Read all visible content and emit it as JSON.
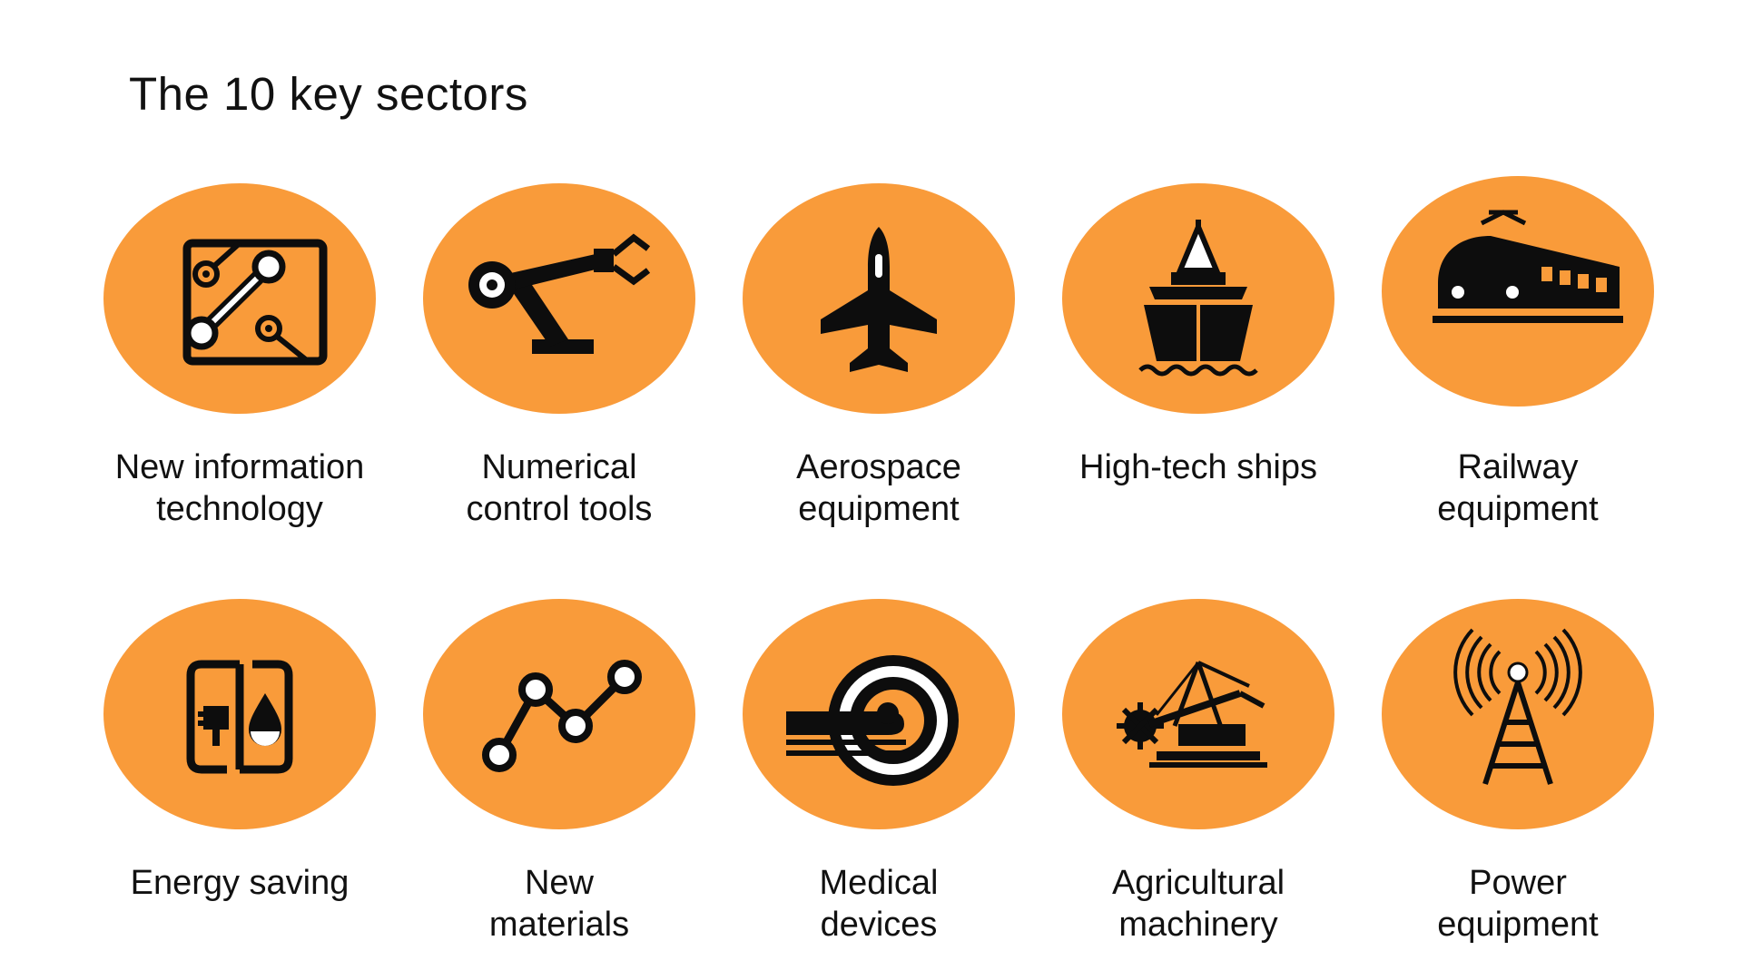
{
  "title": "The 10 key sectors",
  "colors": {
    "disc": "#F99B3A",
    "icon": "#0D0D0D",
    "background": "#FFFFFF"
  },
  "sectors": [
    {
      "icon": "circuit-board-icon",
      "label_lines": [
        "New information",
        "technology"
      ]
    },
    {
      "icon": "robot-arm-icon",
      "label_lines": [
        "Numerical",
        "control tools"
      ]
    },
    {
      "icon": "fighter-jet-icon",
      "label_lines": [
        "Aerospace",
        "equipment"
      ]
    },
    {
      "icon": "ship-icon",
      "label_lines": [
        "High-tech ships",
        ""
      ]
    },
    {
      "icon": "train-icon",
      "label_lines": [
        "Railway",
        "equipment"
      ]
    },
    {
      "icon": "plug-and-drop-icon",
      "label_lines": [
        "Energy saving",
        ""
      ]
    },
    {
      "icon": "molecule-graph-icon",
      "label_lines": [
        "New",
        "materials"
      ]
    },
    {
      "icon": "mri-scanner-icon",
      "label_lines": [
        "Medical",
        "devices"
      ]
    },
    {
      "icon": "bucket-wheel-excavator-icon",
      "label_lines": [
        "Agricultural",
        "machinery"
      ]
    },
    {
      "icon": "transmission-tower-icon",
      "label_lines": [
        "Power",
        "equipment"
      ]
    }
  ]
}
